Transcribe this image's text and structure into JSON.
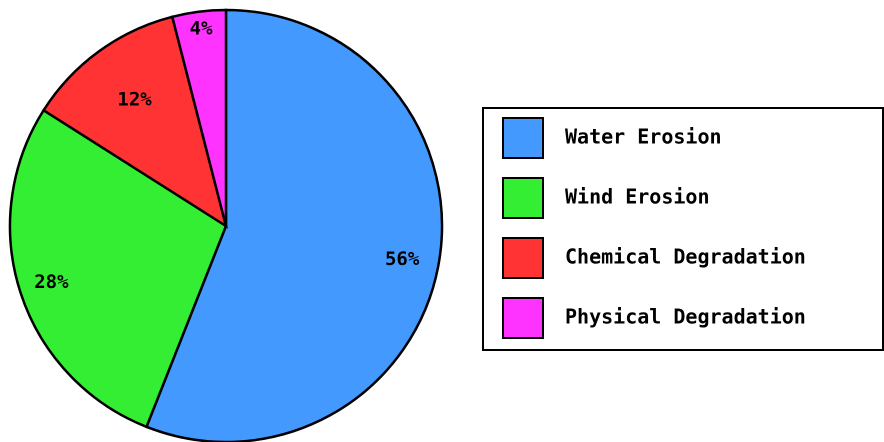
{
  "chart_data": {
    "type": "pie",
    "categories": [
      "Water Erosion",
      "Wind Erosion",
      "Chemical Degradation",
      "Physical Degradation"
    ],
    "values": [
      56,
      28,
      12,
      4
    ],
    "value_labels": [
      "56%",
      "28%",
      "12%",
      "4%"
    ],
    "colors": [
      "#4499ff",
      "#33ee33",
      "#ff3333",
      "#ff33ff"
    ],
    "legend": "right"
  }
}
